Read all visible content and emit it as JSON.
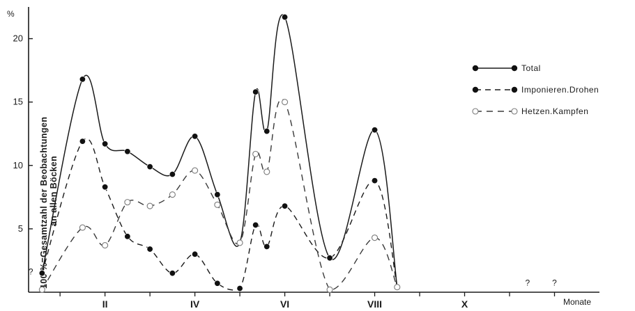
{
  "chart_data": {
    "type": "line",
    "yunit": "%",
    "ylabel_lines": [
      "100 %=Gesamtzahl der Beobachtungen",
      "an allen Böcken"
    ],
    "xlabel": "Monate",
    "yticks": [
      5,
      10,
      15,
      20
    ],
    "ytick_labels": [
      "5",
      "10",
      "15",
      "20"
    ],
    "ylim": [
      0,
      22.5
    ],
    "xlim": [
      0.3,
      13.0
    ],
    "month_labels": [
      {
        "label": "II",
        "x": 2.0
      },
      {
        "label": "IV",
        "x": 4.0
      },
      {
        "label": "VI",
        "x": 6.0
      },
      {
        "label": "VIII",
        "x": 8.0
      },
      {
        "label": "X",
        "x": 10.0
      }
    ],
    "unknown_marks": [
      {
        "label": "?",
        "x": 0.35,
        "y": 1.3
      },
      {
        "label": "?",
        "x": 11.4,
        "y": 0.4
      },
      {
        "label": "?",
        "x": 12.0,
        "y": 0.4
      }
    ],
    "legend_position": "top-right",
    "series": [
      {
        "name": "Total",
        "style": "solid",
        "marker": "filled",
        "points": [
          [
            0.6,
            1.5
          ],
          [
            1.5,
            16.8
          ],
          [
            2.0,
            11.7
          ],
          [
            2.5,
            11.1
          ],
          [
            3.0,
            9.9
          ],
          [
            3.5,
            9.3
          ],
          [
            4.0,
            12.3
          ],
          [
            4.5,
            7.7
          ],
          [
            5.0,
            3.9
          ],
          [
            5.35,
            15.8
          ],
          [
            5.6,
            12.7
          ],
          [
            6.0,
            21.7
          ],
          [
            7.0,
            2.7
          ],
          [
            8.0,
            12.8
          ],
          [
            8.5,
            0.4
          ]
        ]
      },
      {
        "name": "Imponieren.Drohen",
        "style": "dashed",
        "marker": "filled",
        "points": [
          [
            0.6,
            1.5
          ],
          [
            1.5,
            11.9
          ],
          [
            2.0,
            8.3
          ],
          [
            2.5,
            4.4
          ],
          [
            3.0,
            3.4
          ],
          [
            3.5,
            1.5
          ],
          [
            4.0,
            3.0
          ],
          [
            4.5,
            0.7
          ],
          [
            5.0,
            0.3
          ],
          [
            5.35,
            5.3
          ],
          [
            5.6,
            3.6
          ],
          [
            6.0,
            6.8
          ],
          [
            7.0,
            2.7
          ],
          [
            8.0,
            8.8
          ],
          [
            8.5,
            0.4
          ]
        ]
      },
      {
        "name": "Hetzen.Kampfen",
        "style": "dashed",
        "marker": "open",
        "points": [
          [
            0.6,
            0.2
          ],
          [
            1.5,
            5.1
          ],
          [
            2.0,
            3.7
          ],
          [
            2.5,
            7.1
          ],
          [
            3.0,
            6.8
          ],
          [
            3.5,
            7.7
          ],
          [
            4.0,
            9.6
          ],
          [
            4.5,
            6.9
          ],
          [
            5.0,
            3.9
          ],
          [
            5.35,
            10.9
          ],
          [
            5.6,
            9.5
          ],
          [
            6.0,
            15.0
          ],
          [
            7.0,
            0.2
          ],
          [
            8.0,
            4.3
          ],
          [
            8.5,
            0.4
          ]
        ]
      }
    ]
  }
}
